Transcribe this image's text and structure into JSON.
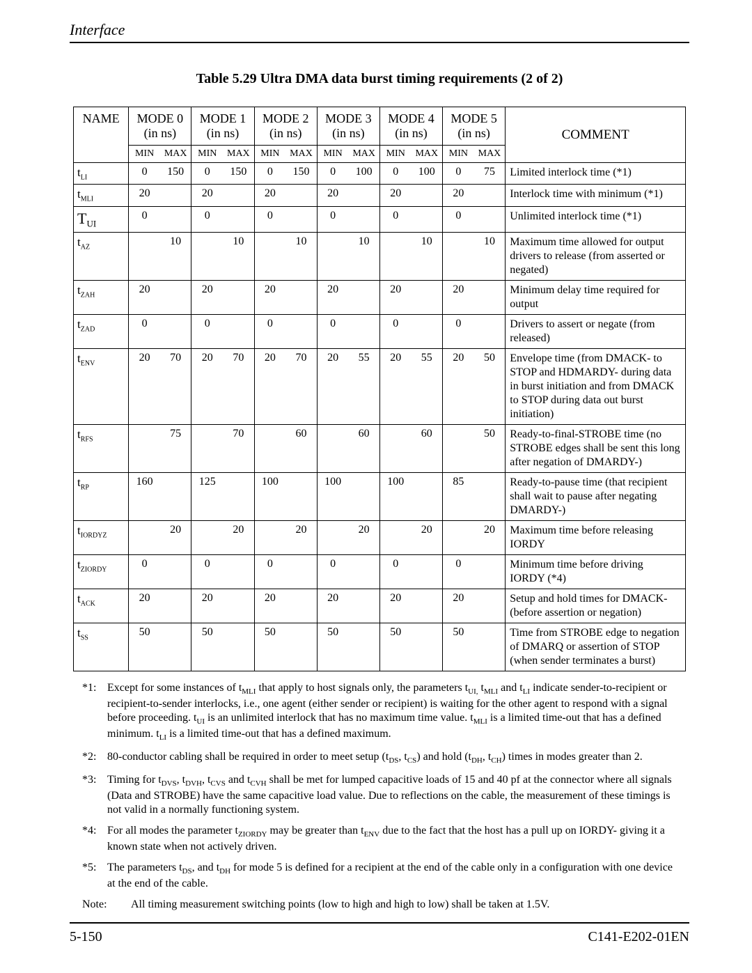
{
  "header": {
    "section_title": "Interface"
  },
  "caption": "Table 5.29  Ultra DMA data burst timing requirements (2 of 2)",
  "columns": {
    "name": "NAME",
    "modes": [
      {
        "label": "MODE 0",
        "unit": "(in ns)"
      },
      {
        "label": "MODE 1",
        "unit": "(in ns)"
      },
      {
        "label": "MODE 2",
        "unit": "(in ns)"
      },
      {
        "label": "MODE 3",
        "unit": "(in ns)"
      },
      {
        "label": "MODE 4",
        "unit": "(in ns)"
      },
      {
        "label": "MODE 5",
        "unit": "(in ns)"
      }
    ],
    "min": "MIN",
    "max": "MAX",
    "comment": "COMMENT"
  },
  "rows": [
    {
      "sym": "t",
      "sub": "LI",
      "big": false,
      "m0": [
        "0",
        "150"
      ],
      "m1": [
        "0",
        "150"
      ],
      "m2": [
        "0",
        "150"
      ],
      "m3": [
        "0",
        "100"
      ],
      "m4": [
        "0",
        "100"
      ],
      "m5": [
        "0",
        "75"
      ],
      "comment": "Limited interlock time (*1)"
    },
    {
      "sym": "t",
      "sub": "MLI",
      "big": false,
      "m0": [
        "20",
        ""
      ],
      "m1": [
        "20",
        ""
      ],
      "m2": [
        "20",
        ""
      ],
      "m3": [
        "20",
        ""
      ],
      "m4": [
        "20",
        ""
      ],
      "m5": [
        "20",
        ""
      ],
      "comment": "Interlock time with minimum (*1)"
    },
    {
      "sym": "T",
      "sub": "UI",
      "big": true,
      "m0": [
        "0",
        ""
      ],
      "m1": [
        "0",
        ""
      ],
      "m2": [
        "0",
        ""
      ],
      "m3": [
        "0",
        ""
      ],
      "m4": [
        "0",
        ""
      ],
      "m5": [
        "0",
        ""
      ],
      "comment": "Unlimited interlock time (*1)"
    },
    {
      "sym": "t",
      "sub": "AZ",
      "big": false,
      "m0": [
        "",
        "10"
      ],
      "m1": [
        "",
        "10"
      ],
      "m2": [
        "",
        "10"
      ],
      "m3": [
        "",
        "10"
      ],
      "m4": [
        "",
        "10"
      ],
      "m5": [
        "",
        "10"
      ],
      "comment": "Maximum time allowed for output drivers to release (from asserted or negated)"
    },
    {
      "sym": "t",
      "sub": "ZAH",
      "big": false,
      "m0": [
        "20",
        ""
      ],
      "m1": [
        "20",
        ""
      ],
      "m2": [
        "20",
        ""
      ],
      "m3": [
        "20",
        ""
      ],
      "m4": [
        "20",
        ""
      ],
      "m5": [
        "20",
        ""
      ],
      "comment": "Minimum delay time required for output"
    },
    {
      "sym": "t",
      "sub": "ZAD",
      "big": false,
      "m0": [
        "0",
        ""
      ],
      "m1": [
        "0",
        ""
      ],
      "m2": [
        "0",
        ""
      ],
      "m3": [
        "0",
        ""
      ],
      "m4": [
        "0",
        ""
      ],
      "m5": [
        "0",
        ""
      ],
      "comment": "Drivers to assert or negate (from released)"
    },
    {
      "sym": "t",
      "sub": "ENV",
      "big": false,
      "m0": [
        "20",
        "70"
      ],
      "m1": [
        "20",
        "70"
      ],
      "m2": [
        "20",
        "70"
      ],
      "m3": [
        "20",
        "55"
      ],
      "m4": [
        "20",
        "55"
      ],
      "m5": [
        "20",
        "50"
      ],
      "comment": "Envelope time (from DMACK- to STOP and HDMARDY- during data in burst initiation and from DMACK to STOP during data out burst initiation)"
    },
    {
      "sym": "t",
      "sub": "RFS",
      "big": false,
      "m0": [
        "",
        "75"
      ],
      "m1": [
        "",
        "70"
      ],
      "m2": [
        "",
        "60"
      ],
      "m3": [
        "",
        "60"
      ],
      "m4": [
        "",
        "60"
      ],
      "m5": [
        "",
        "50"
      ],
      "comment": "Ready-to-final-STROBE time (no STROBE edges shall be sent this long after negation of DMARDY-)"
    },
    {
      "sym": "t",
      "sub": "RP",
      "big": false,
      "m0": [
        "160",
        ""
      ],
      "m1": [
        "125",
        ""
      ],
      "m2": [
        "100",
        ""
      ],
      "m3": [
        "100",
        ""
      ],
      "m4": [
        "100",
        ""
      ],
      "m5": [
        "85",
        ""
      ],
      "comment": "Ready-to-pause time (that recipient shall wait to pause after negating DMARDY-)"
    },
    {
      "sym": "t",
      "sub": "IORDYZ",
      "big": false,
      "m0": [
        "",
        "20"
      ],
      "m1": [
        "",
        "20"
      ],
      "m2": [
        "",
        "20"
      ],
      "m3": [
        "",
        "20"
      ],
      "m4": [
        "",
        "20"
      ],
      "m5": [
        "",
        "20"
      ],
      "comment": "Maximum time before releasing IORDY"
    },
    {
      "sym": "t",
      "sub": "ZIORDY",
      "big": false,
      "m0": [
        "0",
        ""
      ],
      "m1": [
        "0",
        ""
      ],
      "m2": [
        "0",
        ""
      ],
      "m3": [
        "0",
        ""
      ],
      "m4": [
        "0",
        ""
      ],
      "m5": [
        "0",
        ""
      ],
      "comment": "Minimum time before driving IORDY (*4)"
    },
    {
      "sym": "t",
      "sub": "ACK",
      "big": false,
      "m0": [
        "20",
        ""
      ],
      "m1": [
        "20",
        ""
      ],
      "m2": [
        "20",
        ""
      ],
      "m3": [
        "20",
        ""
      ],
      "m4": [
        "20",
        ""
      ],
      "m5": [
        "20",
        ""
      ],
      "comment": "Setup and hold times for DMACK- (before assertion or negation)"
    },
    {
      "sym": "t",
      "sub": "SS",
      "big": false,
      "m0": [
        "50",
        ""
      ],
      "m1": [
        "50",
        ""
      ],
      "m2": [
        "50",
        ""
      ],
      "m3": [
        "50",
        ""
      ],
      "m4": [
        "50",
        ""
      ],
      "m5": [
        "50",
        ""
      ],
      "comment": "Time from STROBE edge to negation of DMARQ or assertion of STOP (when sender terminates a burst)"
    }
  ],
  "footnotes": {
    "f1": "Except for some instances of t_{MLI} that apply to host signals only, the parameters t_{UI,} t_{MLI} and t_{LI} indicate sender-to-recipient or recipient-to-sender interlocks, i.e., one agent (either sender or recipient) is waiting for the other agent to respond with a signal before proceeding.  t_{UI} is an unlimited interlock that has no maximum time value.  t_{MLI} is a limited time-out that has a defined minimum.  t_{LI} is a limited time-out that has a defined maximum.",
    "f2": "80-conductor cabling shall be required in order to meet setup (t_{DS}, t_{CS}) and hold (t_{DH}, t_{CH}) times in modes greater than 2.",
    "f3": "Timing for t_{DVS}, t_{DVH}, t_{CVS} and t_{CVH} shall be met for lumped capacitive loads of 15 and 40 pf at the connector where all signals (Data and STROBE) have the same capacitive load value.  Due to reflections on the cable, the measurement of these timings is not valid in a normally functioning system.",
    "f4": "For all modes the parameter t_{ZIORDY} may be greater than t_{ENV} due to the fact that the host has a pull up on IORDY- giving it a known state when not actively driven.",
    "f5": "The parameters t_{DS}, and t_{DH} for mode 5 is defined for a recipient at the end of the cable only in a configuration with one device at the end of the cable.",
    "note_label": "Note:",
    "note": "All timing measurement switching points (low to high and high to low) shall be taken at 1.5V."
  },
  "footer": {
    "page": "5-150",
    "doc": "C141-E202-01EN"
  }
}
